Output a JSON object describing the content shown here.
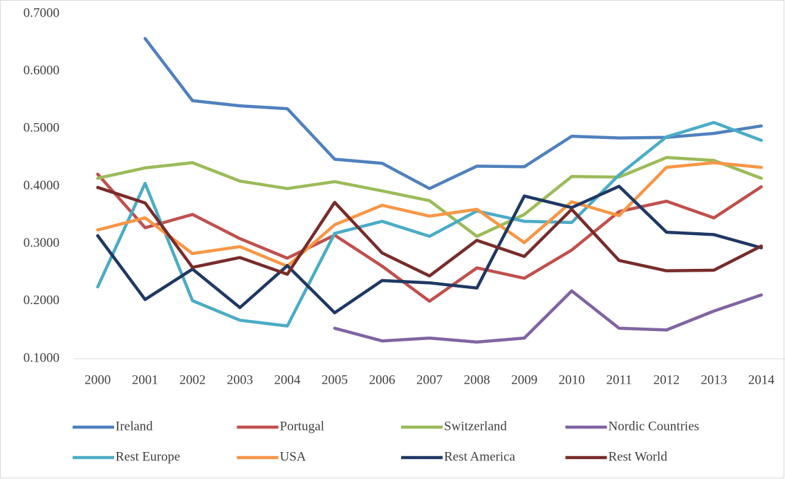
{
  "chart_data": {
    "type": "line",
    "categories": [
      "2000",
      "2001",
      "2002",
      "2003",
      "2004",
      "2005",
      "2006",
      "2007",
      "2008",
      "2009",
      "2010",
      "2011",
      "2012",
      "2013",
      "2014"
    ],
    "ylim": [
      0.1,
      0.7
    ],
    "yticks": [
      {
        "value": 0.1,
        "label": "0.1000"
      },
      {
        "value": 0.2,
        "label": "0.2000"
      },
      {
        "value": 0.3,
        "label": "0.3000"
      },
      {
        "value": 0.4,
        "label": "0.4000"
      },
      {
        "value": 0.5,
        "label": "0.5000"
      },
      {
        "value": 0.6,
        "label": "0.6000"
      },
      {
        "value": 0.7,
        "label": "0.7000"
      }
    ],
    "grid": false,
    "legend": "bottom",
    "series": [
      {
        "name": "Ireland",
        "color": "#4f81bd",
        "values": [
          null,
          0.657,
          0.549,
          0.54,
          0.535,
          0.447,
          0.44,
          0.396,
          0.435,
          0.434,
          0.487,
          0.484,
          0.485,
          0.492,
          0.505
        ]
      },
      {
        "name": "Portugal",
        "color": "#c0504d",
        "values": [
          0.421,
          0.328,
          0.351,
          0.309,
          0.275,
          0.315,
          0.261,
          0.2,
          0.258,
          0.24,
          0.289,
          0.356,
          0.374,
          0.345,
          0.399
        ]
      },
      {
        "name": "Switzerland",
        "color": "#9bbb59",
        "values": [
          0.414,
          0.432,
          0.441,
          0.409,
          0.396,
          0.408,
          0.392,
          0.375,
          0.313,
          0.351,
          0.417,
          0.416,
          0.45,
          0.445,
          0.414
        ]
      },
      {
        "name": "Nordic Countries",
        "color": "#8064a2",
        "values": [
          null,
          null,
          null,
          null,
          null,
          0.153,
          0.131,
          0.136,
          0.129,
          0.136,
          0.218,
          0.153,
          0.15,
          0.183,
          0.211
        ]
      },
      {
        "name": "Rest Europe",
        "color": "#4bacc6",
        "values": [
          0.225,
          0.405,
          0.201,
          0.167,
          0.157,
          0.318,
          0.339,
          0.313,
          0.357,
          0.339,
          0.337,
          0.42,
          0.486,
          0.511,
          0.48
        ]
      },
      {
        "name": "USA",
        "color": "#f79646",
        "values": [
          0.324,
          0.345,
          0.283,
          0.295,
          0.261,
          0.333,
          0.367,
          0.348,
          0.36,
          0.302,
          0.373,
          0.349,
          0.433,
          0.441,
          0.433
        ]
      },
      {
        "name": "Rest America",
        "color": "#1f3864",
        "values": [
          0.314,
          0.203,
          0.256,
          0.189,
          0.262,
          0.18,
          0.236,
          0.232,
          0.223,
          0.383,
          0.363,
          0.4,
          0.32,
          0.316,
          0.293
        ]
      },
      {
        "name": "Rest World",
        "color": "#772c2a",
        "values": [
          0.398,
          0.371,
          0.259,
          0.276,
          0.247,
          0.372,
          0.284,
          0.244,
          0.306,
          0.278,
          0.36,
          0.271,
          0.253,
          0.254,
          0.296
        ]
      }
    ]
  }
}
